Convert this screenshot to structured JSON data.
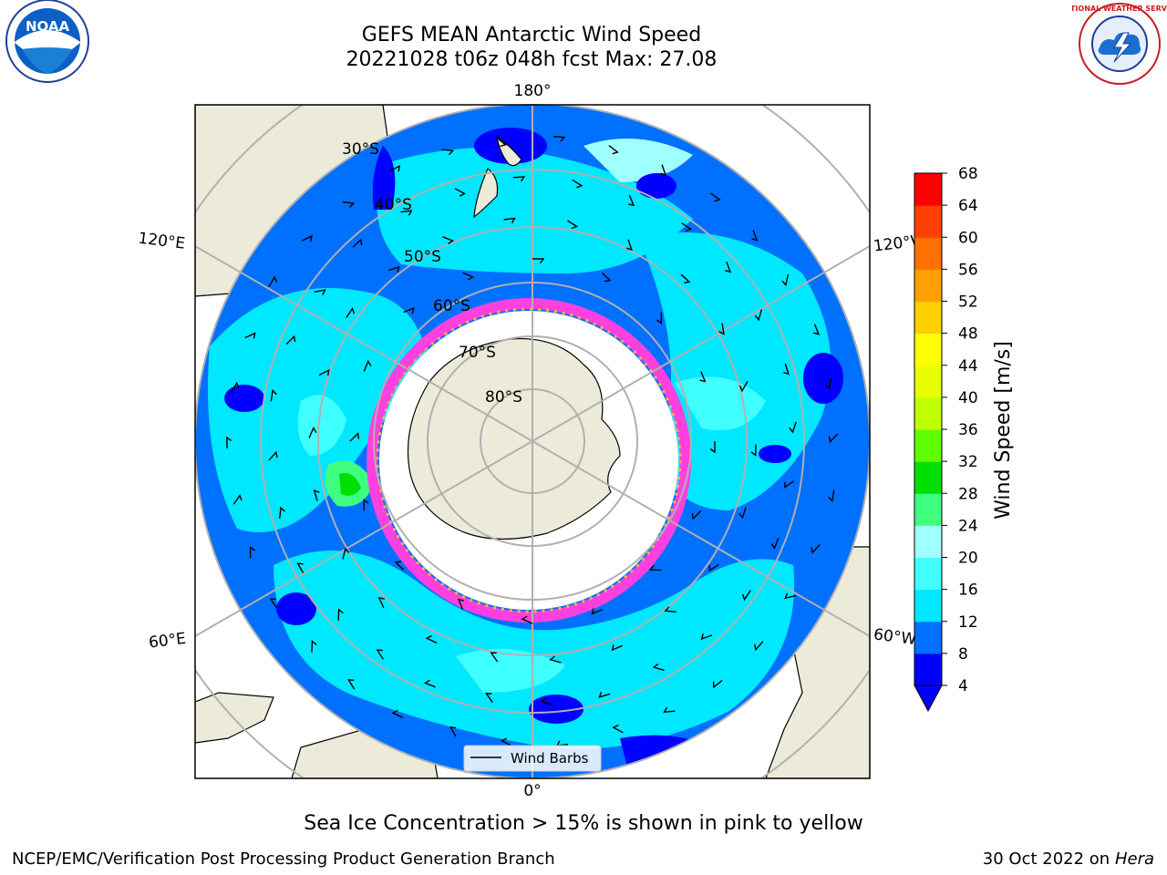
{
  "header": {
    "title_line1": "GEFS MEAN Antarctic Wind Speed",
    "title_line2": "20221028 t06z 048h fcst   Max: 27.08"
  },
  "map": {
    "projection": "south-polar-stereographic",
    "longitude_labels": {
      "top": "180°",
      "bottom": "0°",
      "upper_left": "120°E",
      "upper_right": "120°W",
      "lower_left": "60°E",
      "lower_right": "60°W"
    },
    "latitude_labels": [
      "30°S",
      "40°S",
      "50°S",
      "60°S",
      "70°S",
      "80°S"
    ],
    "legend": {
      "label": "Wind Barbs"
    }
  },
  "colorbar": {
    "label": "Wind Speed [m/s]",
    "ticks": [
      "4",
      "8",
      "12",
      "16",
      "20",
      "24",
      "28",
      "32",
      "36",
      "40",
      "44",
      "48",
      "52",
      "56",
      "60",
      "64",
      "68"
    ],
    "colors": [
      "#0000ff",
      "#0070ff",
      "#00e8ff",
      "#40ffff",
      "#a0ffff",
      "#40ff80",
      "#00e000",
      "#60ff00",
      "#c0ff00",
      "#e8ff00",
      "#ffff00",
      "#ffd000",
      "#ffa000",
      "#ff7000",
      "#ff4000",
      "#ff0000"
    ],
    "under_color": "#0000ff"
  },
  "caption": "Sea Ice Concentration > 15% is shown in pink to yellow",
  "footer": {
    "left": "NCEP/EMC/Verification Post Processing Product Generation Branch",
    "right_prefix": "30 Oct 2022 on ",
    "right_host": "Hera"
  },
  "logos": {
    "noaa": "NOAA",
    "nws": "NATIONAL WEATHER SERVICE"
  }
}
